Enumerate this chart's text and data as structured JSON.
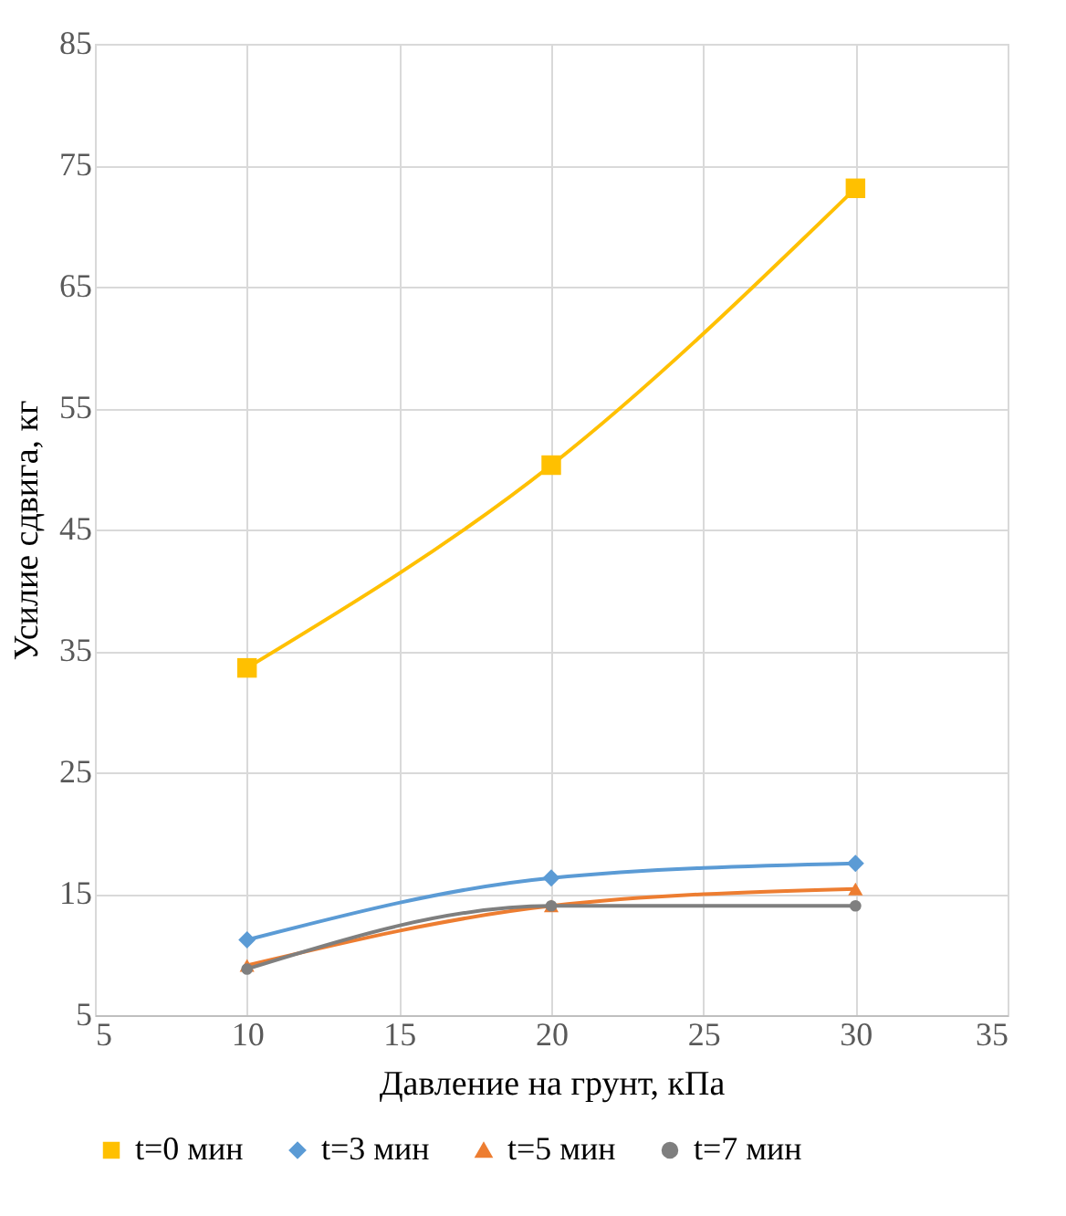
{
  "chart_data": {
    "type": "line",
    "xlabel": "Давление на грунт, кПа",
    "ylabel": "Усилие сдвига, кг",
    "x": [
      10,
      20,
      30
    ],
    "series": [
      {
        "name": "t=0 мин",
        "color": "#ffc000",
        "marker": "square",
        "values": [
          33.6,
          50.3,
          73.1
        ]
      },
      {
        "name": "t=3 мин",
        "color": "#5b9bd5",
        "marker": "diamond",
        "values": [
          11.2,
          16.3,
          17.5
        ]
      },
      {
        "name": "t=5 мин",
        "color": "#ed7d31",
        "marker": "triangle",
        "values": [
          9.1,
          14.0,
          15.4
        ]
      },
      {
        "name": "t=7 мин",
        "color": "#7f7f7f",
        "marker": "circle",
        "values": [
          8.8,
          14.0,
          14.0
        ]
      }
    ],
    "xlim": [
      5,
      35
    ],
    "xticks": [
      5,
      10,
      15,
      20,
      25,
      30,
      35
    ],
    "ylim": [
      5,
      85
    ],
    "yticks": [
      5,
      15,
      25,
      35,
      45,
      55,
      65,
      75,
      85
    ],
    "grid": true,
    "legend": "bottom",
    "line_style": "solid"
  }
}
